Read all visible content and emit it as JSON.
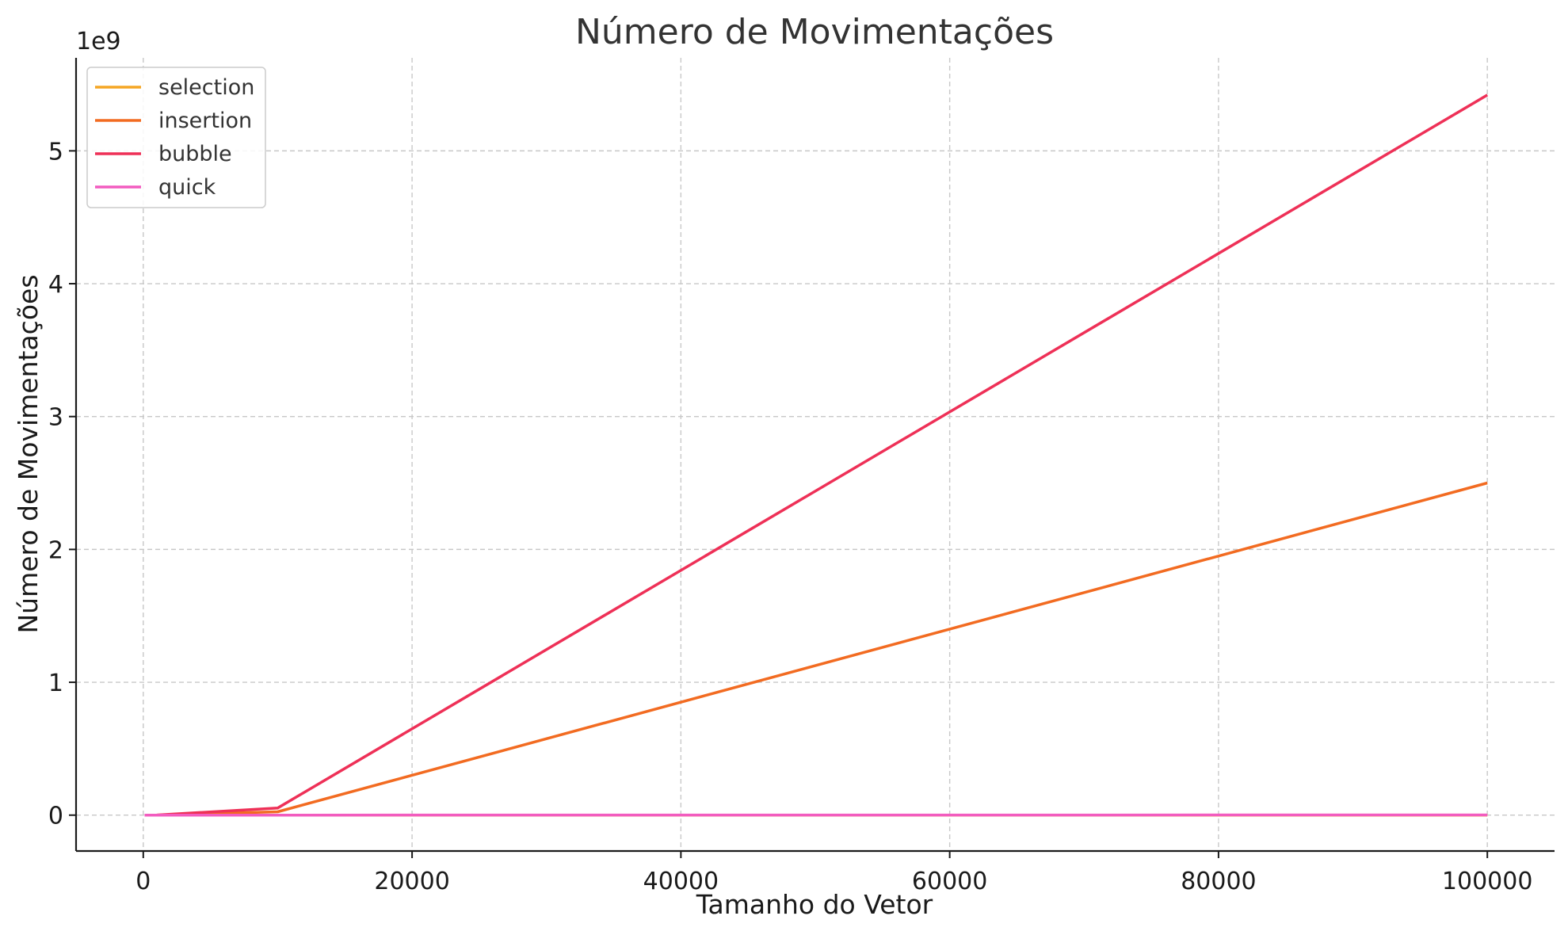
{
  "chart_data": {
    "type": "line",
    "title": "Número de Movimentações",
    "xlabel": "Tamanho do Vetor",
    "ylabel": "Número de Movimentações",
    "y_offset_text": "1e9",
    "xlim": [
      -5000,
      105000
    ],
    "ylim": [
      -0.27,
      5.7
    ],
    "x_ticks": [
      0,
      20000,
      40000,
      60000,
      80000,
      100000
    ],
    "x_tick_labels": [
      "0",
      "20000",
      "40000",
      "60000",
      "80000",
      "100000"
    ],
    "y_ticks": [
      0,
      1,
      2,
      3,
      4,
      5
    ],
    "y_tick_labels": [
      "0",
      "1",
      "2",
      "3",
      "4",
      "5"
    ],
    "grid": true,
    "legend_position": "top-left",
    "x": [
      100,
      1000,
      10000,
      100000
    ],
    "series": [
      {
        "name": "selection",
        "color": "#f5a623",
        "values": [
          3e-07,
          3e-06,
          3e-05,
          0.0003
        ]
      },
      {
        "name": "insertion",
        "color": "#f26b21",
        "values": [
          2.5e-06,
          0.00025,
          0.025,
          2.5
        ]
      },
      {
        "name": "bubble",
        "color": "#ee3057",
        "values": [
          5.4e-06,
          0.00054,
          0.054,
          5.42
        ]
      },
      {
        "name": "quick",
        "color": "#f25cbf",
        "values": [
          5e-07,
          7e-06,
          9e-05,
          0.0011
        ]
      }
    ]
  }
}
